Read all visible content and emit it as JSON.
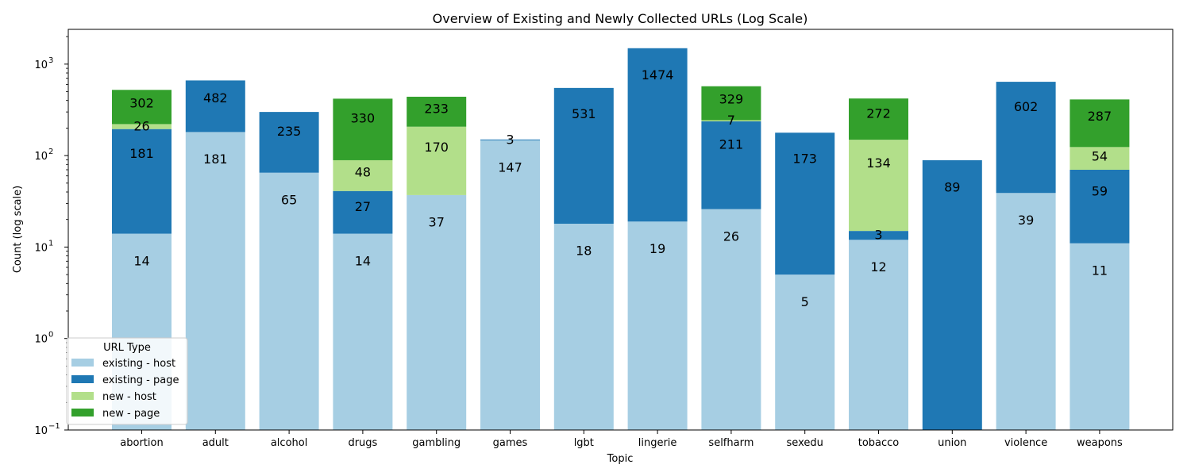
{
  "chart_data": {
    "type": "bar",
    "stacked": true,
    "title": "Overview of Existing and Newly Collected URLs (Log Scale)",
    "xlabel": "Topic",
    "ylabel": "Count (log scale)",
    "y_scale": "log",
    "ylim": [
      0.1,
      2400
    ],
    "yticks": [
      {
        "value": 0.1,
        "base": "10",
        "exp": "−1"
      },
      {
        "value": 1,
        "base": "10",
        "exp": "0"
      },
      {
        "value": 10,
        "base": "10",
        "exp": "1"
      },
      {
        "value": 100,
        "base": "10",
        "exp": "2"
      },
      {
        "value": 1000,
        "base": "10",
        "exp": "3"
      }
    ],
    "grid": false,
    "categories": [
      "abortion",
      "adult",
      "alcohol",
      "drugs",
      "gambling",
      "games",
      "lgbt",
      "lingerie",
      "selfharm",
      "sexedu",
      "tobacco",
      "union",
      "violence",
      "weapons"
    ],
    "series": [
      {
        "name": "existing - host",
        "color": "#a6cee3",
        "values": [
          14,
          181,
          65,
          14,
          37,
          147,
          18,
          19,
          26,
          5,
          12,
          0,
          39,
          11
        ]
      },
      {
        "name": "existing - page",
        "color": "#1f78b4",
        "values": [
          181,
          482,
          235,
          27,
          0,
          3,
          531,
          1474,
          211,
          173,
          3,
          89,
          602,
          59
        ]
      },
      {
        "name": "new - host",
        "color": "#b2df8a",
        "values": [
          26,
          0,
          0,
          48,
          170,
          0,
          0,
          0,
          7,
          0,
          134,
          0,
          0,
          54
        ]
      },
      {
        "name": "new - page",
        "color": "#33a02c",
        "values": [
          302,
          0,
          0,
          330,
          233,
          0,
          0,
          0,
          329,
          0,
          272,
          0,
          0,
          287
        ]
      }
    ],
    "legend": {
      "title": "URL Type",
      "placement": "lower-left"
    }
  }
}
